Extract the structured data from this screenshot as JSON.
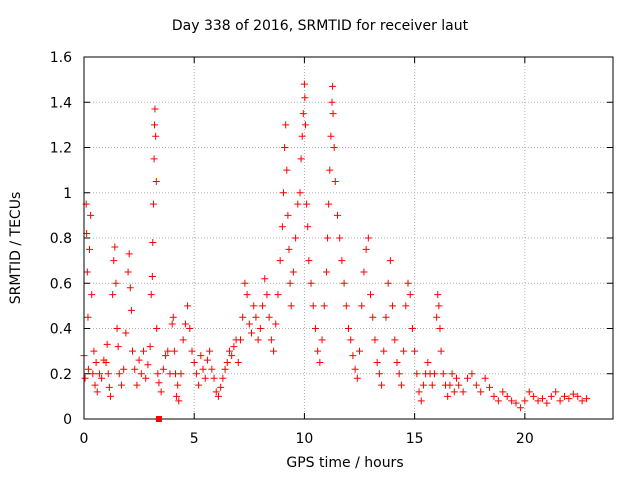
{
  "chart_data": {
    "type": "scatter",
    "title": "Day 338 of 2016, SRMTID for receiver laut",
    "xlabel": "GPS time / hours",
    "ylabel": "SRMTID / TECUs",
    "xlim": [
      0,
      24
    ],
    "ylim": [
      0,
      1.6
    ],
    "xticks": [
      0,
      5,
      10,
      15,
      20
    ],
    "yticks": [
      0,
      0.2,
      0.4,
      0.6,
      0.8,
      1,
      1.2,
      1.4,
      1.6
    ],
    "xtick_labels": [
      "0",
      "5",
      "10",
      "15",
      "20"
    ],
    "ytick_labels": [
      "0",
      "0.2",
      "0.4",
      "0.6",
      "0.8",
      "1",
      "1.2",
      "1.4",
      "1.6"
    ],
    "grid": true,
    "marker": "plus",
    "color": "#ff0000",
    "series": [
      {
        "name": "SRMTID",
        "points": [
          [
            0.0,
            0.28
          ],
          [
            0.05,
            0.18
          ],
          [
            0.1,
            0.95
          ],
          [
            0.12,
            0.82
          ],
          [
            0.15,
            0.65
          ],
          [
            0.18,
            0.45
          ],
          [
            0.2,
            0.22
          ],
          [
            0.25,
            0.75
          ],
          [
            0.3,
            0.9
          ],
          [
            0.35,
            0.55
          ],
          [
            0.4,
            0.2
          ],
          [
            0.45,
            0.3
          ],
          [
            0.5,
            0.15
          ],
          [
            0.55,
            0.25
          ],
          [
            0.6,
            0.12
          ],
          [
            0.7,
            0.2
          ],
          [
            0.8,
            0.18
          ],
          [
            0.9,
            0.26
          ],
          [
            1.0,
            0.25
          ],
          [
            1.05,
            0.33
          ],
          [
            1.1,
            0.2
          ],
          [
            1.15,
            0.14
          ],
          [
            1.2,
            0.1
          ],
          [
            1.3,
            0.55
          ],
          [
            1.35,
            0.7
          ],
          [
            1.4,
            0.76
          ],
          [
            1.45,
            0.6
          ],
          [
            1.5,
            0.4
          ],
          [
            1.55,
            0.32
          ],
          [
            1.6,
            0.2
          ],
          [
            1.7,
            0.15
          ],
          [
            1.8,
            0.22
          ],
          [
            1.9,
            0.38
          ],
          [
            2.0,
            0.65
          ],
          [
            2.05,
            0.73
          ],
          [
            2.1,
            0.58
          ],
          [
            2.15,
            0.48
          ],
          [
            2.2,
            0.3
          ],
          [
            2.3,
            0.22
          ],
          [
            2.4,
            0.15
          ],
          [
            2.5,
            0.26
          ],
          [
            2.6,
            0.2
          ],
          [
            2.7,
            0.3
          ],
          [
            2.8,
            0.18
          ],
          [
            2.9,
            0.24
          ],
          [
            3.0,
            0.32
          ],
          [
            3.05,
            0.55
          ],
          [
            3.1,
            0.63
          ],
          [
            3.12,
            0.78
          ],
          [
            3.15,
            0.95
          ],
          [
            3.18,
            1.15
          ],
          [
            3.2,
            1.3
          ],
          [
            3.22,
            1.37
          ],
          [
            3.25,
            1.25
          ],
          [
            3.28,
            1.05
          ],
          [
            3.3,
            0.4
          ],
          [
            3.35,
            0.2
          ],
          [
            3.4,
            0.16
          ],
          [
            3.5,
            0.12
          ],
          [
            3.6,
            0.22
          ],
          [
            3.7,
            0.28
          ],
          [
            3.8,
            0.3
          ],
          [
            3.9,
            0.2
          ],
          [
            4.0,
            0.42
          ],
          [
            4.05,
            0.45
          ],
          [
            4.1,
            0.3
          ],
          [
            4.15,
            0.2
          ],
          [
            4.2,
            0.1
          ],
          [
            4.25,
            0.15
          ],
          [
            4.3,
            0.08
          ],
          [
            4.4,
            0.2
          ],
          [
            4.5,
            0.35
          ],
          [
            4.6,
            0.42
          ],
          [
            4.7,
            0.5
          ],
          [
            4.8,
            0.4
          ],
          [
            4.9,
            0.3
          ],
          [
            5.0,
            0.25
          ],
          [
            5.1,
            0.2
          ],
          [
            5.2,
            0.15
          ],
          [
            5.3,
            0.28
          ],
          [
            5.4,
            0.22
          ],
          [
            5.5,
            0.18
          ],
          [
            5.6,
            0.26
          ],
          [
            5.7,
            0.3
          ],
          [
            5.8,
            0.22
          ],
          [
            5.9,
            0.18
          ],
          [
            6.0,
            0.12
          ],
          [
            6.1,
            0.1
          ],
          [
            6.2,
            0.14
          ],
          [
            6.3,
            0.18
          ],
          [
            6.4,
            0.22
          ],
          [
            6.5,
            0.25
          ],
          [
            6.6,
            0.3
          ],
          [
            6.7,
            0.28
          ],
          [
            6.8,
            0.32
          ],
          [
            6.9,
            0.35
          ],
          [
            7.0,
            0.25
          ],
          [
            7.1,
            0.35
          ],
          [
            7.2,
            0.45
          ],
          [
            7.3,
            0.6
          ],
          [
            7.4,
            0.55
          ],
          [
            7.5,
            0.42
          ],
          [
            7.6,
            0.38
          ],
          [
            7.7,
            0.5
          ],
          [
            7.8,
            0.45
          ],
          [
            7.9,
            0.35
          ],
          [
            8.0,
            0.4
          ],
          [
            8.1,
            0.5
          ],
          [
            8.2,
            0.62
          ],
          [
            8.3,
            0.55
          ],
          [
            8.4,
            0.45
          ],
          [
            8.5,
            0.35
          ],
          [
            8.6,
            0.3
          ],
          [
            8.7,
            0.42
          ],
          [
            8.8,
            0.55
          ],
          [
            8.9,
            0.7
          ],
          [
            9.0,
            0.85
          ],
          [
            9.05,
            1.0
          ],
          [
            9.1,
            1.2
          ],
          [
            9.15,
            1.3
          ],
          [
            9.2,
            1.1
          ],
          [
            9.25,
            0.9
          ],
          [
            9.3,
            0.75
          ],
          [
            9.35,
            0.6
          ],
          [
            9.4,
            0.5
          ],
          [
            9.5,
            0.65
          ],
          [
            9.6,
            0.8
          ],
          [
            9.7,
            0.95
          ],
          [
            9.8,
            1.0
          ],
          [
            9.85,
            1.15
          ],
          [
            9.9,
            1.25
          ],
          [
            9.95,
            1.35
          ],
          [
            10.0,
            1.48
          ],
          [
            10.02,
            1.42
          ],
          [
            10.05,
            1.3
          ],
          [
            10.1,
            0.95
          ],
          [
            10.15,
            0.85
          ],
          [
            10.2,
            0.7
          ],
          [
            10.3,
            0.6
          ],
          [
            10.4,
            0.5
          ],
          [
            10.5,
            0.4
          ],
          [
            10.6,
            0.3
          ],
          [
            10.7,
            0.25
          ],
          [
            10.8,
            0.35
          ],
          [
            10.9,
            0.5
          ],
          [
            11.0,
            0.65
          ],
          [
            11.05,
            0.8
          ],
          [
            11.1,
            0.95
          ],
          [
            11.15,
            1.1
          ],
          [
            11.2,
            1.25
          ],
          [
            11.25,
            1.4
          ],
          [
            11.28,
            1.47
          ],
          [
            11.3,
            1.35
          ],
          [
            11.35,
            1.2
          ],
          [
            11.4,
            1.05
          ],
          [
            11.5,
            0.9
          ],
          [
            11.6,
            0.8
          ],
          [
            11.7,
            0.7
          ],
          [
            11.8,
            0.6
          ],
          [
            11.9,
            0.5
          ],
          [
            12.0,
            0.4
          ],
          [
            12.1,
            0.35
          ],
          [
            12.2,
            0.28
          ],
          [
            12.3,
            0.22
          ],
          [
            12.4,
            0.18
          ],
          [
            12.5,
            0.3
          ],
          [
            12.6,
            0.5
          ],
          [
            12.7,
            0.65
          ],
          [
            12.8,
            0.75
          ],
          [
            12.9,
            0.8
          ],
          [
            13.0,
            0.55
          ],
          [
            13.1,
            0.45
          ],
          [
            13.2,
            0.35
          ],
          [
            13.3,
            0.25
          ],
          [
            13.4,
            0.2
          ],
          [
            13.5,
            0.15
          ],
          [
            13.6,
            0.3
          ],
          [
            13.7,
            0.45
          ],
          [
            13.8,
            0.6
          ],
          [
            13.9,
            0.7
          ],
          [
            14.0,
            0.5
          ],
          [
            14.1,
            0.35
          ],
          [
            14.2,
            0.25
          ],
          [
            14.3,
            0.2
          ],
          [
            14.4,
            0.15
          ],
          [
            14.5,
            0.3
          ],
          [
            14.6,
            0.5
          ],
          [
            14.7,
            0.6
          ],
          [
            14.8,
            0.55
          ],
          [
            14.9,
            0.4
          ],
          [
            15.0,
            0.3
          ],
          [
            15.1,
            0.2
          ],
          [
            15.2,
            0.12
          ],
          [
            15.3,
            0.08
          ],
          [
            15.4,
            0.15
          ],
          [
            15.5,
            0.2
          ],
          [
            15.6,
            0.25
          ],
          [
            15.7,
            0.2
          ],
          [
            15.8,
            0.15
          ],
          [
            15.9,
            0.2
          ],
          [
            16.0,
            0.45
          ],
          [
            16.05,
            0.55
          ],
          [
            16.1,
            0.5
          ],
          [
            16.15,
            0.4
          ],
          [
            16.2,
            0.3
          ],
          [
            16.3,
            0.2
          ],
          [
            16.4,
            0.15
          ],
          [
            16.5,
            0.1
          ],
          [
            16.6,
            0.15
          ],
          [
            16.7,
            0.2
          ],
          [
            16.8,
            0.12
          ],
          [
            16.9,
            0.18
          ],
          [
            17.0,
            0.15
          ],
          [
            17.2,
            0.12
          ],
          [
            17.4,
            0.18
          ],
          [
            17.6,
            0.2
          ],
          [
            17.8,
            0.15
          ],
          [
            18.0,
            0.12
          ],
          [
            18.2,
            0.18
          ],
          [
            18.4,
            0.14
          ],
          [
            18.6,
            0.1
          ],
          [
            18.8,
            0.08
          ],
          [
            19.0,
            0.12
          ],
          [
            19.2,
            0.1
          ],
          [
            19.4,
            0.08
          ],
          [
            19.6,
            0.07
          ],
          [
            19.8,
            0.05
          ],
          [
            20.0,
            0.08
          ],
          [
            20.2,
            0.12
          ],
          [
            20.4,
            0.1
          ],
          [
            20.6,
            0.08
          ],
          [
            20.8,
            0.09
          ],
          [
            21.0,
            0.07
          ],
          [
            21.2,
            0.1
          ],
          [
            21.4,
            0.12
          ],
          [
            21.6,
            0.08
          ],
          [
            21.8,
            0.1
          ],
          [
            22.0,
            0.09
          ],
          [
            22.2,
            0.11
          ],
          [
            22.4,
            0.1
          ],
          [
            22.6,
            0.08
          ],
          [
            22.8,
            0.09
          ]
        ]
      }
    ],
    "annotations": [
      {
        "type": "square-marker",
        "x": 3.4,
        "y": 0
      }
    ]
  }
}
